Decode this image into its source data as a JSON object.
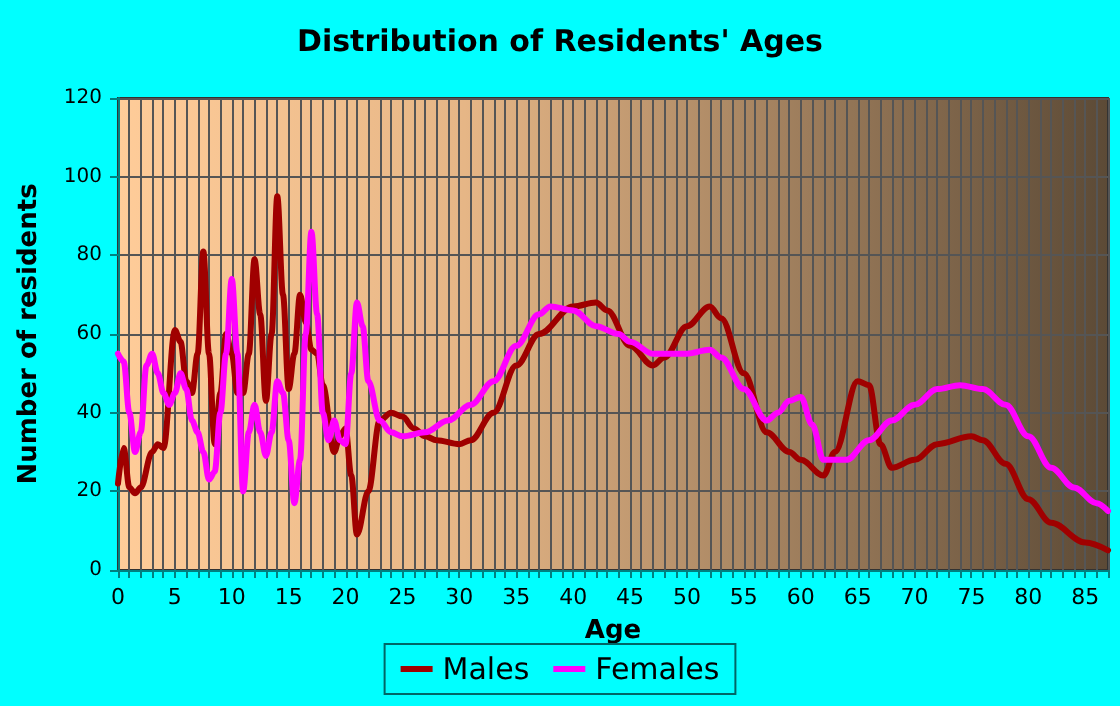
{
  "chart_data": {
    "type": "line",
    "title": "Distribution of Residents' Ages",
    "xlabel": "Age",
    "ylabel": "Number of residents",
    "xlim": [
      0,
      87
    ],
    "xticks": [
      0,
      5,
      10,
      15,
      20,
      25,
      30,
      35,
      40,
      45,
      50,
      55,
      60,
      65,
      70,
      75,
      80,
      85
    ],
    "ylim": [
      0,
      120
    ],
    "yticks": [
      0,
      20,
      40,
      60,
      80,
      100,
      120
    ],
    "grid": true,
    "legend": "bottom",
    "marker": "none",
    "line_style": "solid",
    "series": [
      {
        "name": "Males",
        "color": "#a00000",
        "x": [
          0,
          0.5,
          1,
          1.5,
          2,
          3,
          3.5,
          4,
          5,
          5.5,
          6,
          6.5,
          7,
          7.5,
          8,
          8.5,
          9,
          9.5,
          10,
          10.5,
          11,
          11.5,
          12,
          12.5,
          13,
          13.5,
          14,
          14.5,
          15,
          15.5,
          16,
          16.5,
          17,
          17.5,
          18,
          19,
          19.5,
          20,
          20.5,
          21,
          22,
          23,
          24,
          25,
          26,
          27,
          28,
          30,
          31,
          33,
          35,
          37,
          40,
          42,
          43,
          45,
          47,
          48,
          50,
          52,
          53,
          55,
          57,
          59,
          60,
          62,
          63,
          65,
          66,
          67,
          68,
          70,
          72,
          75,
          76,
          78,
          80,
          82,
          85,
          87
        ],
        "values": [
          22,
          31,
          21,
          19.5,
          21,
          30,
          32,
          31,
          61,
          58,
          48,
          45,
          55,
          81,
          55,
          32,
          45,
          60,
          55,
          45,
          45,
          55,
          79,
          65,
          43,
          60,
          95,
          70,
          46,
          55,
          70,
          63,
          56,
          55,
          47,
          30,
          34,
          36,
          24,
          9,
          20,
          38,
          40,
          39,
          36,
          34,
          33,
          32,
          33,
          40,
          52,
          60,
          67,
          68,
          66,
          57,
          52,
          54,
          62,
          67,
          64,
          50,
          35,
          30,
          28,
          24,
          30,
          48,
          47,
          32,
          26,
          28,
          32,
          34,
          33,
          27,
          18,
          12,
          7,
          5
        ]
      },
      {
        "name": "Females",
        "color": "#ff00ff",
        "x": [
          0,
          0.5,
          1,
          1.5,
          2,
          2.5,
          3,
          3.5,
          4,
          4.5,
          5,
          5.5,
          6,
          6.5,
          7,
          7.5,
          8,
          8.5,
          9,
          9.5,
          10,
          10.5,
          11,
          11.5,
          12,
          12.5,
          13,
          13.5,
          14,
          14.5,
          15,
          15.5,
          16,
          16.5,
          17,
          17.5,
          18,
          18.5,
          19,
          19.5,
          20,
          20.5,
          21,
          21.5,
          22,
          23,
          24,
          25,
          27,
          29,
          31,
          33,
          35,
          37,
          38,
          40,
          42,
          44,
          45,
          47,
          50,
          52,
          53,
          55,
          57,
          58,
          59,
          60,
          61,
          62,
          64,
          66,
          68,
          70,
          72,
          74,
          76,
          78,
          80,
          82,
          84,
          86,
          87
        ],
        "values": [
          55,
          53,
          40,
          30,
          35,
          52,
          55,
          50,
          45,
          42,
          45,
          50,
          46,
          38,
          35,
          30,
          23,
          25,
          40,
          55,
          74,
          55,
          20,
          35,
          42,
          35,
          29,
          35,
          48,
          45,
          33,
          17,
          28,
          60,
          86,
          65,
          40,
          33,
          38,
          33,
          32,
          50,
          68,
          62,
          48,
          38,
          35,
          34,
          35,
          38,
          42,
          48,
          57,
          65,
          67,
          66,
          62,
          60,
          58,
          55,
          55,
          56,
          54,
          46,
          38,
          40,
          43,
          44,
          37,
          28,
          28,
          33,
          38,
          42,
          46,
          47,
          46,
          42,
          34,
          26,
          21,
          17,
          15
        ]
      }
    ]
  }
}
